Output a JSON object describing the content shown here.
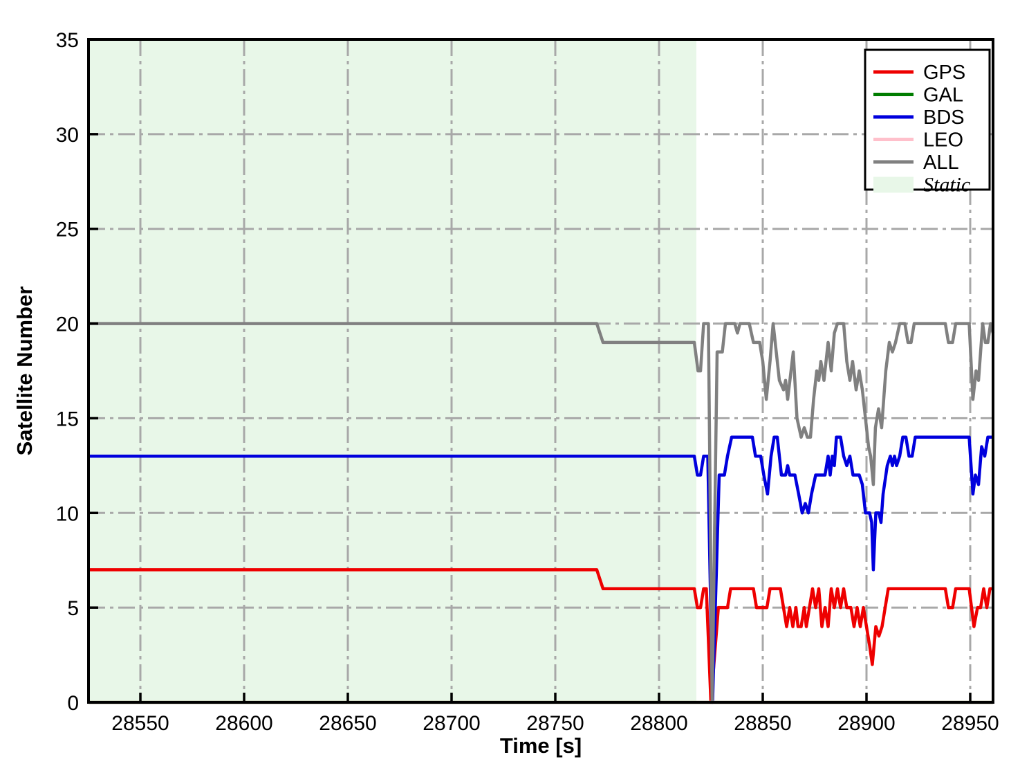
{
  "chart_data": {
    "type": "line",
    "title": "",
    "xlabel": "Time [s]",
    "ylabel": "Satellite Number",
    "xlim": [
      28525,
      28961
    ],
    "ylim": [
      0,
      35
    ],
    "xticks": [
      28550,
      28600,
      28650,
      28700,
      28750,
      28800,
      28850,
      28900,
      28950
    ],
    "yticks": [
      0,
      5,
      10,
      15,
      20,
      25,
      30,
      35
    ],
    "grid": "dash-dot",
    "grid_color": "#a8a8a8",
    "axis_color": "#000000",
    "legend_position": "top-right",
    "static_region": {
      "label": "Static",
      "x_start": 28525,
      "x_end": 28818,
      "color": "#e8f7e8"
    },
    "legend": {
      "entries": [
        {
          "label": "GPS",
          "type": "line",
          "color": "#ee0000"
        },
        {
          "label": "GAL",
          "type": "line",
          "color": "#007d00"
        },
        {
          "label": "BDS",
          "type": "line",
          "color": "#0000dd"
        },
        {
          "label": "LEO",
          "type": "line",
          "color": "#ffc0cb"
        },
        {
          "label": "ALL",
          "type": "line",
          "color": "#808080"
        },
        {
          "label": "Static",
          "type": "patch",
          "color": "#e8f7e8"
        }
      ]
    },
    "series": [
      {
        "name": "GPS",
        "color": "#ee0000",
        "points": [
          [
            28525,
            7
          ],
          [
            28770,
            7
          ],
          [
            28773,
            6
          ],
          [
            28817,
            6
          ],
          [
            28818.5,
            5
          ],
          [
            28820,
            5
          ],
          [
            28821.5,
            6
          ],
          [
            28822.8,
            6
          ],
          [
            28825,
            0
          ],
          [
            28828.6,
            5
          ],
          [
            28833,
            5
          ],
          [
            28834.5,
            6
          ],
          [
            28845.5,
            6
          ],
          [
            28847,
            5
          ],
          [
            28852,
            5
          ],
          [
            28853.5,
            6
          ],
          [
            28858.5,
            6
          ],
          [
            28860,
            5
          ],
          [
            28861.5,
            4
          ],
          [
            28863,
            5
          ],
          [
            28864.5,
            4
          ],
          [
            28866,
            5
          ],
          [
            28867,
            4
          ],
          [
            28868.5,
            4
          ],
          [
            28870,
            5
          ],
          [
            28871,
            4
          ],
          [
            28872.5,
            5
          ],
          [
            28874,
            6
          ],
          [
            28875.5,
            5
          ],
          [
            28877,
            6
          ],
          [
            28878.5,
            4
          ],
          [
            28880,
            5
          ],
          [
            28881.5,
            4
          ],
          [
            28883,
            6
          ],
          [
            28884.5,
            5
          ],
          [
            28886,
            6
          ],
          [
            28887.5,
            5
          ],
          [
            28889,
            6
          ],
          [
            28890.5,
            5
          ],
          [
            28892.5,
            5
          ],
          [
            28894,
            4
          ],
          [
            28895.5,
            5
          ],
          [
            28897,
            4
          ],
          [
            28898.5,
            5
          ],
          [
            28900,
            4
          ],
          [
            28901.5,
            3
          ],
          [
            28902.8,
            2
          ],
          [
            28904.5,
            4
          ],
          [
            28906,
            3.5
          ],
          [
            28907.5,
            4
          ],
          [
            28909,
            5
          ],
          [
            28910.5,
            6
          ],
          [
            28938,
            6
          ],
          [
            28939.5,
            5
          ],
          [
            28941.5,
            5
          ],
          [
            28943,
            6
          ],
          [
            28949.5,
            6
          ],
          [
            28951.8,
            4
          ],
          [
            28953.5,
            5
          ],
          [
            28955,
            5
          ],
          [
            28956.5,
            6
          ],
          [
            28958,
            5
          ],
          [
            28959.5,
            6
          ],
          [
            28961,
            6
          ]
        ]
      },
      {
        "name": "GAL",
        "color": "#007d00",
        "points": [
          [
            28525,
            0
          ],
          [
            28961,
            0
          ]
        ]
      },
      {
        "name": "BDS",
        "color": "#0000dd",
        "points": [
          [
            28525,
            13
          ],
          [
            28817,
            13
          ],
          [
            28818.5,
            12
          ],
          [
            28820,
            12
          ],
          [
            28821.5,
            13
          ],
          [
            28823.5,
            13
          ],
          [
            28825.8,
            0
          ],
          [
            28829,
            12
          ],
          [
            28831.5,
            12
          ],
          [
            28833,
            13
          ],
          [
            28835,
            14
          ],
          [
            28845,
            14
          ],
          [
            28846.5,
            13
          ],
          [
            28849,
            13
          ],
          [
            28850.5,
            12
          ],
          [
            28852.3,
            11
          ],
          [
            28854,
            13
          ],
          [
            28855.5,
            14
          ],
          [
            28857,
            14
          ],
          [
            28859,
            12
          ],
          [
            28861,
            12
          ],
          [
            28862,
            12.5
          ],
          [
            28863,
            12
          ],
          [
            28865.5,
            12
          ],
          [
            28867.3,
            11
          ],
          [
            28869,
            10
          ],
          [
            28870.5,
            10.5
          ],
          [
            28872,
            10
          ],
          [
            28873.5,
            11
          ],
          [
            28875.5,
            12
          ],
          [
            28880,
            12
          ],
          [
            28881.5,
            13
          ],
          [
            28882.5,
            12
          ],
          [
            28883.5,
            13
          ],
          [
            28884.5,
            12.5
          ],
          [
            28885.5,
            14
          ],
          [
            28887.5,
            14
          ],
          [
            28889,
            13
          ],
          [
            28890.5,
            12.5
          ],
          [
            28892,
            13
          ],
          [
            28893.5,
            12
          ],
          [
            28896.5,
            12
          ],
          [
            28898,
            11.5
          ],
          [
            28899.5,
            10
          ],
          [
            28901.5,
            10
          ],
          [
            28902.5,
            9.5
          ],
          [
            28903.3,
            7
          ],
          [
            28904.5,
            10
          ],
          [
            28906,
            10
          ],
          [
            28907,
            9.5
          ],
          [
            28908,
            11
          ],
          [
            28910,
            12.5
          ],
          [
            28911.5,
            13
          ],
          [
            28912.5,
            12.5
          ],
          [
            28913.5,
            13
          ],
          [
            28914.5,
            12.5
          ],
          [
            28916,
            13
          ],
          [
            28917.5,
            14
          ],
          [
            28919,
            14
          ],
          [
            28920.5,
            13
          ],
          [
            28922,
            13
          ],
          [
            28923.5,
            14
          ],
          [
            28949.5,
            14
          ],
          [
            28951.3,
            11
          ],
          [
            28952.5,
            12
          ],
          [
            28954,
            11.5
          ],
          [
            28955.5,
            13.5
          ],
          [
            28957,
            13
          ],
          [
            28958.5,
            14
          ],
          [
            28961,
            14
          ]
        ]
      },
      {
        "name": "LEO",
        "color": "#ffc0cb",
        "points": [
          [
            28525,
            0
          ],
          [
            28961,
            0
          ]
        ]
      },
      {
        "name": "ALL",
        "color": "#808080",
        "points": [
          [
            28525,
            20
          ],
          [
            28770,
            20
          ],
          [
            28773,
            19
          ],
          [
            28817,
            19
          ],
          [
            28818.8,
            17.5
          ],
          [
            28820,
            17.5
          ],
          [
            28821.5,
            20
          ],
          [
            28823.8,
            20
          ],
          [
            28825.6,
            0
          ],
          [
            28828,
            18.5
          ],
          [
            28830.5,
            18.5
          ],
          [
            28832,
            20
          ],
          [
            28836.5,
            20
          ],
          [
            28837.8,
            19.5
          ],
          [
            28839,
            20
          ],
          [
            28843.5,
            20
          ],
          [
            28845.5,
            19
          ],
          [
            28848.5,
            19
          ],
          [
            28850,
            18
          ],
          [
            28851.7,
            16
          ],
          [
            28853.5,
            18
          ],
          [
            28855,
            20
          ],
          [
            28856.5,
            18.5
          ],
          [
            28858,
            17
          ],
          [
            28860,
            16.5
          ],
          [
            28861,
            17
          ],
          [
            28862,
            16
          ],
          [
            28864.7,
            18.5
          ],
          [
            28866.5,
            15
          ],
          [
            28868.5,
            14
          ],
          [
            28870,
            14.5
          ],
          [
            28871.5,
            14
          ],
          [
            28873,
            14
          ],
          [
            28874.5,
            16
          ],
          [
            28876,
            17.5
          ],
          [
            28877,
            17
          ],
          [
            28878,
            18
          ],
          [
            28879.5,
            17
          ],
          [
            28881.5,
            19
          ],
          [
            28883,
            17.5
          ],
          [
            28884.5,
            19.5
          ],
          [
            28886,
            20
          ],
          [
            28889,
            20
          ],
          [
            28890.5,
            18
          ],
          [
            28892,
            17
          ],
          [
            28893.3,
            18
          ],
          [
            28895,
            16.5
          ],
          [
            28896.5,
            17.5
          ],
          [
            28898,
            16.5
          ],
          [
            28899.5,
            15
          ],
          [
            28901,
            13.5
          ],
          [
            28902,
            13
          ],
          [
            28903.3,
            11.5
          ],
          [
            28904.3,
            14.5
          ],
          [
            28905.8,
            15.5
          ],
          [
            28907.3,
            14.5
          ],
          [
            28909.3,
            17.5
          ],
          [
            28911,
            19
          ],
          [
            28912.5,
            18.5
          ],
          [
            28914,
            19
          ],
          [
            28916,
            20
          ],
          [
            28918.5,
            20
          ],
          [
            28920,
            19
          ],
          [
            28921.5,
            19
          ],
          [
            28923,
            20
          ],
          [
            28938,
            20
          ],
          [
            28939.5,
            19
          ],
          [
            28941.5,
            19
          ],
          [
            28943,
            20
          ],
          [
            28949.5,
            20
          ],
          [
            28951.3,
            16
          ],
          [
            28952.8,
            17.5
          ],
          [
            28954,
            17
          ],
          [
            28956,
            20
          ],
          [
            28957.3,
            19
          ],
          [
            28958.5,
            19
          ],
          [
            28959.8,
            20
          ],
          [
            28961,
            19.5
          ]
        ]
      }
    ]
  }
}
